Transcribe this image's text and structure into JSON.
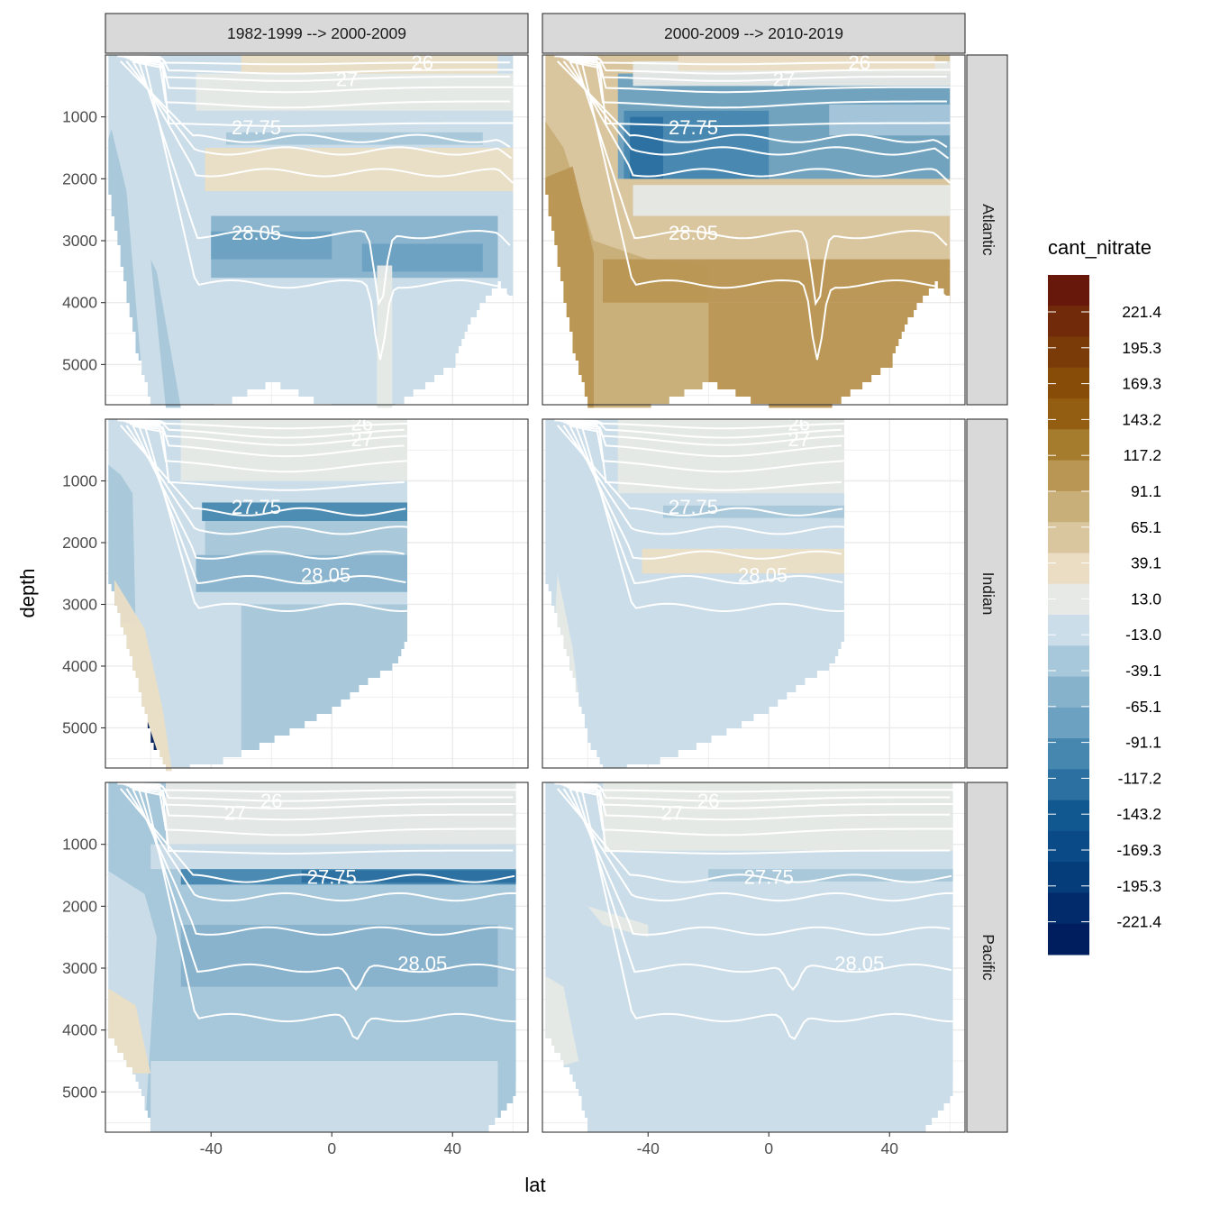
{
  "chart_data": {
    "type": "heatmap",
    "subtype": "faceted filled-contour ocean sections",
    "title": "",
    "xlabel": "lat",
    "ylabel": "depth",
    "x_ticks": [
      -40,
      0,
      40
    ],
    "x_tick_labels": [
      "-40",
      "0",
      "40"
    ],
    "y_ticks": [
      1000,
      2000,
      3000,
      4000,
      5000
    ],
    "y_tick_labels": [
      "1000",
      "2000",
      "3000",
      "4000",
      "5000"
    ],
    "xlim": [
      -75,
      65
    ],
    "ylim": [
      5650,
      0
    ],
    "y_reversed": true,
    "grid": true,
    "facet_columns": [
      "1982-1999 --> 2000-2009",
      "2000-2009 --> 2010-2019"
    ],
    "facet_rows": [
      "Atlantic",
      "Indian",
      "Pacific"
    ],
    "legend": {
      "title": "cant_nitrate",
      "position": "right",
      "labels": [
        "221.4",
        "195.3",
        "169.3",
        "143.2",
        "117.2",
        "91.1",
        "65.1",
        "39.1",
        "13.0",
        "-13.0",
        "-39.1",
        "-65.1",
        "-91.1",
        "-117.2",
        "-143.2",
        "-169.3",
        "-195.3",
        "-221.4"
      ],
      "colors": [
        "#67180A",
        "#722B0A",
        "#7B3B08",
        "#874C08",
        "#935E12",
        "#A57C2E",
        "#BA9654",
        "#C8AE78",
        "#DAC69E",
        "#EADDC4",
        "#E6E9E6",
        "#CBDDE8",
        "#A7C7DA",
        "#87B2CC",
        "#6CA1C1",
        "#4687B0",
        "#2B70A1",
        "#115891",
        "#0A4A86",
        "#053C7A",
        "#022B6C",
        "#001E5E"
      ]
    },
    "isopycnal_labels": [
      "26",
      "27",
      "27.75",
      "28.05"
    ],
    "palette": {
      "lb": "#CBDDE8",
      "mb": "#A7C7DA",
      "mb2": "#87B2CC",
      "db": "#6CA1C1",
      "db2": "#4687B0",
      "vdb": "#2B70A1",
      "navy": "#001E5E",
      "gr": "#E6E9E6",
      "lt": "#EADDC4",
      "tn": "#DAC69E",
      "tn2": "#C8AE78",
      "br": "#BA9654"
    },
    "panels": [
      {
        "column": "1982-1999 --> 2000-2009",
        "row": "Atlantic",
        "basin": "atlantic",
        "fill_base": "lb",
        "lat_max": 60,
        "contour_label_positions": [
          {
            "text": "26",
            "lat": 30,
            "depth": 150
          },
          {
            "text": "27",
            "lat": 5,
            "depth": 420
          },
          {
            "text": "27.75",
            "lat": -25,
            "depth": 1200
          },
          {
            "text": "28.05",
            "lat": -25,
            "depth": 2900
          }
        ],
        "bands": [
          {
            "color": "mb",
            "type": "poly",
            "pts": [
              [
                -73,
                1200
              ],
              [
                -68,
                2200
              ],
              [
                -62,
                5700
              ],
              [
                -75,
                5700
              ],
              [
                -75,
                1500
              ]
            ]
          },
          {
            "color": "mb",
            "type": "poly",
            "pts": [
              [
                -60,
                3300
              ],
              [
                -55,
                5700
              ],
              [
                -50,
                5700
              ],
              [
                -58,
                3500
              ]
            ]
          },
          {
            "color": "lt",
            "type": "band",
            "from": [
              -42,
              60
            ],
            "top": 1500,
            "bot": 2200
          },
          {
            "color": "mb2",
            "type": "band",
            "from": [
              -40,
              55
            ],
            "top": 2600,
            "bot": 3600
          },
          {
            "color": "db",
            "type": "band",
            "from": [
              -40,
              0
            ],
            "top": 2850,
            "bot": 3300
          },
          {
            "color": "db",
            "type": "band",
            "from": [
              10,
              50
            ],
            "top": 3050,
            "bot": 3500
          },
          {
            "color": "gr",
            "type": "band",
            "from": [
              15,
              20
            ],
            "top": 3400,
            "bot": 5700
          },
          {
            "color": "gr",
            "type": "band",
            "from": [
              -45,
              60
            ],
            "top": 300,
            "bot": 900
          },
          {
            "color": "lt",
            "type": "band",
            "from": [
              -30,
              55
            ],
            "top": 0,
            "bot": 300
          },
          {
            "color": "mb",
            "type": "band",
            "from": [
              -35,
              50
            ],
            "top": 1250,
            "bot": 1450
          }
        ]
      },
      {
        "column": "2000-2009 --> 2010-2019",
        "row": "Atlantic",
        "basin": "atlantic",
        "fill_base": "tn",
        "lat_max": 60,
        "contour_label_positions": [
          {
            "text": "26",
            "lat": 30,
            "depth": 150
          },
          {
            "text": "27",
            "lat": 5,
            "depth": 420
          },
          {
            "text": "27.75",
            "lat": -25,
            "depth": 1200
          },
          {
            "text": "28.05",
            "lat": -25,
            "depth": 2900
          }
        ],
        "bands": [
          {
            "color": "tn2",
            "type": "poly",
            "pts": [
              [
                -75,
                1000
              ],
              [
                -68,
                1500
              ],
              [
                -58,
                3000
              ],
              [
                -40,
                3300
              ],
              [
                -20,
                3400
              ],
              [
                -20,
                5700
              ],
              [
                -75,
                5700
              ]
            ]
          },
          {
            "color": "br",
            "type": "poly",
            "pts": [
              [
                -75,
                2000
              ],
              [
                -65,
                1800
              ],
              [
                -58,
                3200
              ],
              [
                -58,
                5700
              ],
              [
                -75,
                5700
              ]
            ]
          },
          {
            "color": "br",
            "type": "band",
            "from": [
              -55,
              60
            ],
            "top": 3300,
            "bot": 4000
          },
          {
            "color": "br",
            "type": "band",
            "from": [
              -20,
              60
            ],
            "top": 4000,
            "bot": 5700
          },
          {
            "color": "gr",
            "type": "band",
            "from": [
              -45,
              60
            ],
            "top": 2100,
            "bot": 2600
          },
          {
            "color": "db",
            "type": "band",
            "from": [
              -50,
              60
            ],
            "top": 300,
            "bot": 2000
          },
          {
            "color": "db2",
            "type": "band",
            "from": [
              -48,
              0
            ],
            "top": 900,
            "bot": 2000
          },
          {
            "color": "vdb",
            "type": "band",
            "from": [
              -46,
              -35
            ],
            "top": 1000,
            "bot": 2000
          },
          {
            "color": "mb",
            "type": "band",
            "from": [
              20,
              60
            ],
            "top": 800,
            "bot": 1300
          },
          {
            "color": "gr",
            "type": "band",
            "from": [
              -45,
              60
            ],
            "top": 100,
            "bot": 500
          },
          {
            "color": "lt",
            "type": "band",
            "from": [
              -30,
              55
            ],
            "top": 0,
            "bot": 250
          }
        ]
      },
      {
        "column": "1982-1999 --> 2000-2009",
        "row": "Indian",
        "basin": "indian",
        "fill_base": "lb",
        "lat_max": 25,
        "contour_label_positions": [
          {
            "text": "26",
            "lat": 10,
            "depth": 100
          },
          {
            "text": "27",
            "lat": 10,
            "depth": 350
          },
          {
            "text": "27.75",
            "lat": -25,
            "depth": 1450
          },
          {
            "text": "28.05",
            "lat": -2,
            "depth": 2550
          }
        ],
        "bands": [
          {
            "color": "mb",
            "type": "poly",
            "pts": [
              [
                -70,
                900
              ],
              [
                -66,
                1200
              ],
              [
                -65,
                3300
              ],
              [
                -75,
                3300
              ],
              [
                -75,
                700
              ]
            ]
          },
          {
            "color": "lt",
            "type": "poly",
            "pts": [
              [
                -72,
                2600
              ],
              [
                -62,
                3400
              ],
              [
                -56,
                4700
              ],
              [
                -53,
                5700
              ],
              [
                -68,
                5700
              ],
              [
                -72,
                4000
              ]
            ]
          },
          {
            "color": "tn",
            "type": "poly",
            "pts": [
              [
                -70,
                4200
              ],
              [
                -66,
                4400
              ],
              [
                -62,
                5700
              ],
              [
                -70,
                5700
              ]
            ]
          },
          {
            "color": "navy",
            "type": "poly",
            "pts": [
              [
                -67,
                5150
              ],
              [
                -61,
                4900
              ],
              [
                -57,
                5500
              ],
              [
                -55,
                5700
              ],
              [
                -67,
                5700
              ]
            ]
          },
          {
            "color": "db2",
            "type": "band",
            "from": [
              -43,
              25
            ],
            "top": 1350,
            "bot": 1650
          },
          {
            "color": "mb",
            "type": "band",
            "from": [
              -42,
              25
            ],
            "top": 1650,
            "bot": 2200
          },
          {
            "color": "mb",
            "type": "band",
            "from": [
              -30,
              25
            ],
            "top": 3000,
            "bot": 5700
          },
          {
            "color": "mb2",
            "type": "band",
            "from": [
              -45,
              25
            ],
            "top": 2200,
            "bot": 2800
          },
          {
            "color": "gr",
            "type": "band",
            "from": [
              -50,
              25
            ],
            "top": 0,
            "bot": 1000
          }
        ]
      },
      {
        "column": "2000-2009 --> 2010-2019",
        "row": "Indian",
        "basin": "indian",
        "fill_base": "lb",
        "lat_max": 25,
        "contour_label_positions": [
          {
            "text": "26",
            "lat": 10,
            "depth": 100
          },
          {
            "text": "27",
            "lat": 10,
            "depth": 350
          },
          {
            "text": "27.75",
            "lat": -25,
            "depth": 1450
          },
          {
            "text": "28.05",
            "lat": -2,
            "depth": 2550
          }
        ],
        "bands": [
          {
            "color": "gr",
            "type": "band",
            "from": [
              -50,
              25
            ],
            "top": 0,
            "bot": 1200
          },
          {
            "color": "mb",
            "type": "band",
            "from": [
              -35,
              25
            ],
            "top": 1400,
            "bot": 1600
          },
          {
            "color": "lt",
            "type": "band",
            "from": [
              -42,
              25
            ],
            "top": 2100,
            "bot": 2500
          },
          {
            "color": "gr",
            "type": "poly",
            "pts": [
              [
                -70,
                2500
              ],
              [
                -65,
                3700
              ],
              [
                -60,
                5700
              ],
              [
                -68,
                5700
              ],
              [
                -72,
                4200
              ]
            ]
          }
        ]
      },
      {
        "column": "1982-1999 --> 2000-2009",
        "row": "Pacific",
        "basin": "pacific",
        "fill_base": "mb",
        "lat_max": 61,
        "contour_label_positions": [
          {
            "text": "27",
            "lat": -32,
            "depth": 520
          },
          {
            "text": "26",
            "lat": -20,
            "depth": 320
          },
          {
            "text": "27.75",
            "lat": 0,
            "depth": 1550
          },
          {
            "text": "28.05",
            "lat": 30,
            "depth": 2950
          }
        ],
        "bands": [
          {
            "color": "gr",
            "type": "band",
            "from": [
              -55,
              61
            ],
            "top": 0,
            "bot": 1000
          },
          {
            "color": "lb",
            "type": "band",
            "from": [
              -60,
              61
            ],
            "top": 1000,
            "bot": 1400
          },
          {
            "color": "db2",
            "type": "band",
            "from": [
              -50,
              61
            ],
            "top": 1400,
            "bot": 1650
          },
          {
            "color": "vdb",
            "type": "band",
            "from": [
              -10,
              61
            ],
            "top": 1420,
            "bot": 1620
          },
          {
            "color": "mb2",
            "type": "band",
            "from": [
              -50,
              55
            ],
            "top": 2300,
            "bot": 3300
          },
          {
            "color": "lb",
            "type": "poly",
            "pts": [
              [
                -75,
                1400
              ],
              [
                -62,
                1800
              ],
              [
                -58,
                2500
              ],
              [
                -62,
                5700
              ],
              [
                -75,
                5700
              ]
            ]
          },
          {
            "color": "lt",
            "type": "poly",
            "pts": [
              [
                -75,
                3300
              ],
              [
                -65,
                3600
              ],
              [
                -60,
                4700
              ],
              [
                -75,
                4700
              ]
            ]
          },
          {
            "color": "lb",
            "type": "band",
            "from": [
              -60,
              55
            ],
            "top": 4500,
            "bot": 5700
          }
        ]
      },
      {
        "column": "2000-2009 --> 2010-2019",
        "row": "Pacific",
        "basin": "pacific",
        "fill_base": "lb",
        "lat_max": 61,
        "contour_label_positions": [
          {
            "text": "27",
            "lat": -32,
            "depth": 520
          },
          {
            "text": "26",
            "lat": -20,
            "depth": 320
          },
          {
            "text": "27.75",
            "lat": 0,
            "depth": 1550
          },
          {
            "text": "28.05",
            "lat": 30,
            "depth": 2950
          }
        ],
        "bands": [
          {
            "color": "gr",
            "type": "band",
            "from": [
              -55,
              61
            ],
            "top": 0,
            "bot": 1100
          },
          {
            "color": "mb",
            "type": "band",
            "from": [
              -20,
              61
            ],
            "top": 1400,
            "bot": 1600
          },
          {
            "color": "gr",
            "type": "poly",
            "pts": [
              [
                -60,
                2000
              ],
              [
                -40,
                2300
              ],
              [
                -40,
                2500
              ],
              [
                -55,
                2300
              ]
            ]
          },
          {
            "color": "gr",
            "type": "poly",
            "pts": [
              [
                -75,
                3100
              ],
              [
                -68,
                3300
              ],
              [
                -63,
                4500
              ],
              [
                -70,
                4600
              ],
              [
                -75,
                4000
              ]
            ]
          }
        ]
      }
    ]
  }
}
